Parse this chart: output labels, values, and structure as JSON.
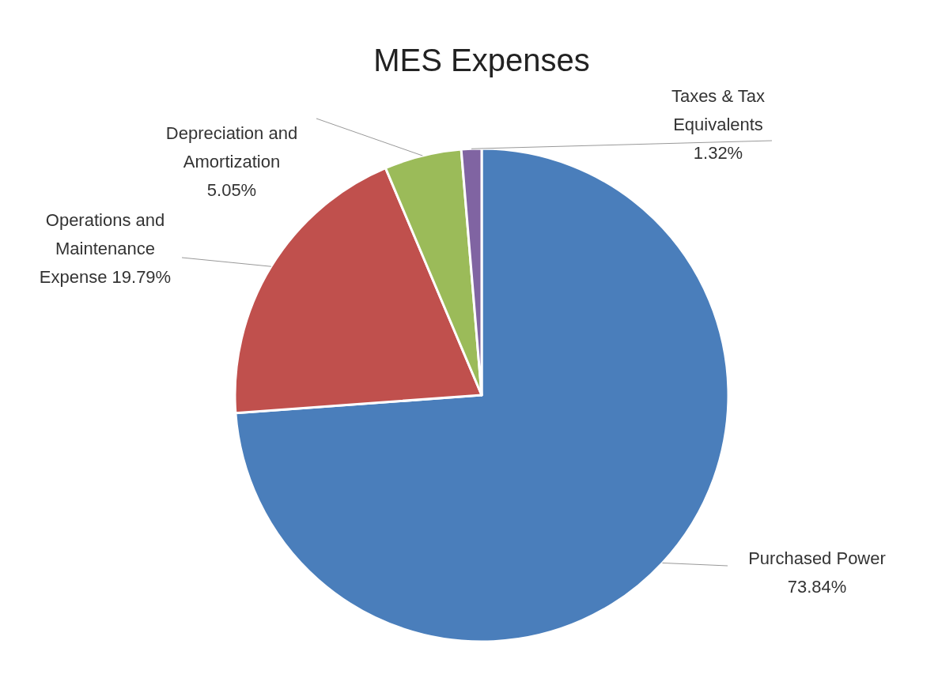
{
  "chart_data": {
    "type": "pie",
    "title": "MES Expenses",
    "categories": [
      "Purchased Power",
      "Operations and Maintenance Expense",
      "Depreciation and Amortization",
      "Taxes & Tax Equivalents"
    ],
    "values": [
      73.84,
      19.79,
      5.05,
      1.32
    ],
    "value_labels": [
      "73.84%",
      "19.79%",
      "5.05%",
      "1.32%"
    ],
    "colors": [
      "#4a7ebb",
      "#c0504d",
      "#9bbb59",
      "#8064a2"
    ]
  }
}
